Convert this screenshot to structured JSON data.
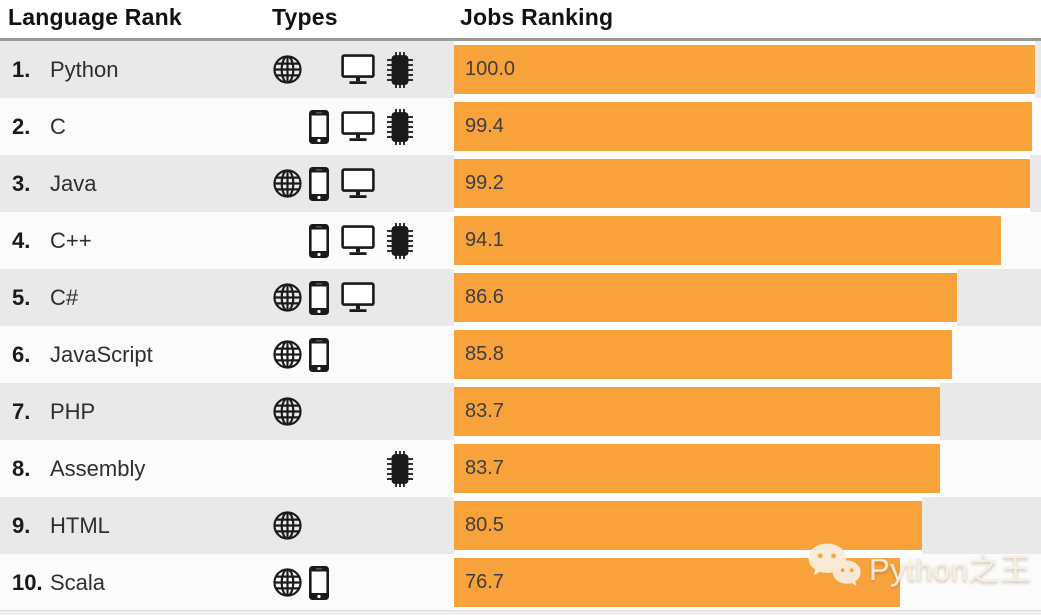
{
  "title_row": {
    "language_rank": "Language Rank",
    "types": "Types",
    "jobs_ranking": "Jobs Ranking"
  },
  "watermark": {
    "label": "Python之王",
    "icon": "wechat-icon"
  },
  "colors": {
    "bar_orange": "#F8A23C",
    "row_odd_bg": "#E9E9E9",
    "row_even_bg": "#FBFBFB",
    "header_rule": "#9A9A9A",
    "value_text": "#3E3E3E"
  },
  "type_icons": {
    "web": "globe-icon",
    "mobile": "smartphone-icon",
    "desktop": "monitor-icon",
    "embedded": "chip-icon"
  },
  "chart_data": {
    "type": "bar",
    "orientation": "horizontal",
    "title": "Jobs Ranking",
    "categories": [
      "Python",
      "C",
      "Java",
      "C++",
      "C#",
      "JavaScript",
      "PHP",
      "Assembly",
      "HTML",
      "Scala"
    ],
    "ranks": [
      "1.",
      "2.",
      "3.",
      "4.",
      "5.",
      "6.",
      "7.",
      "8.",
      "9.",
      "10."
    ],
    "values": [
      100.0,
      99.4,
      99.2,
      94.1,
      86.6,
      85.8,
      83.7,
      83.7,
      80.5,
      76.7
    ],
    "value_labels": [
      "100.0",
      "99.4",
      "99.2",
      "94.1",
      "86.6",
      "85.8",
      "83.7",
      "83.7",
      "80.5",
      "76.7"
    ],
    "types": [
      [
        "web",
        "desktop",
        "embedded"
      ],
      [
        "mobile",
        "desktop",
        "embedded"
      ],
      [
        "web",
        "mobile",
        "desktop"
      ],
      [
        "mobile",
        "desktop",
        "embedded"
      ],
      [
        "web",
        "mobile",
        "desktop"
      ],
      [
        "web",
        "mobile"
      ],
      [
        "web"
      ],
      [
        "embedded"
      ],
      [
        "web"
      ],
      [
        "web",
        "mobile"
      ]
    ],
    "xlim": [
      0,
      100
    ],
    "bar_color": "#F8A23C",
    "grid": false,
    "legend": false
  }
}
